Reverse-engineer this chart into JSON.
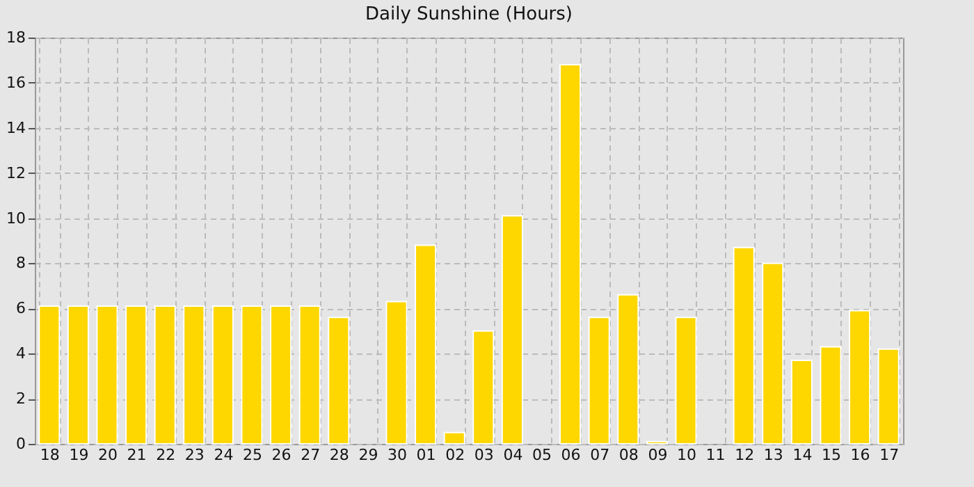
{
  "chart_data": {
    "type": "bar",
    "title": "Daily Sunshine (Hours)",
    "categories": [
      "18",
      "19",
      "20",
      "21",
      "22",
      "23",
      "24",
      "25",
      "26",
      "27",
      "28",
      "29",
      "30",
      "01",
      "02",
      "03",
      "04",
      "05",
      "06",
      "07",
      "08",
      "09",
      "10",
      "11",
      "12",
      "13",
      "14",
      "15",
      "16",
      "17"
    ],
    "values": [
      6.1,
      6.1,
      6.1,
      6.1,
      6.1,
      6.1,
      6.1,
      6.1,
      6.1,
      6.1,
      5.6,
      null,
      6.3,
      8.8,
      0.5,
      5.0,
      10.1,
      null,
      16.8,
      5.6,
      6.6,
      0.1,
      5.6,
      null,
      8.7,
      8.0,
      3.7,
      4.3,
      5.9,
      4.2
    ],
    "color": "#ffd700",
    "ylim": [
      0,
      18
    ],
    "yticks": [
      0,
      2,
      4,
      6,
      8,
      10,
      12,
      14,
      16,
      18
    ],
    "grid": true
  }
}
